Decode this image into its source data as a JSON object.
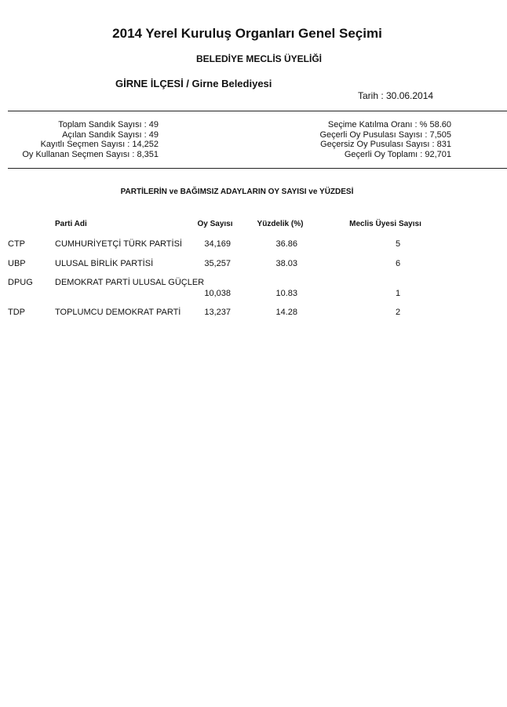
{
  "header": {
    "title": "2014 Yerel Kuruluş Organları Genel Seçimi",
    "subtitle": "BELEDİYE MECLİS ÜYELİĞİ",
    "district": "GİRNE İLÇESİ / Girne Belediyesi",
    "date": "Tarih : 30.06.2014"
  },
  "stats_left": [
    "Toplam Sandık Sayısı : 49",
    "Açılan Sandık Sayısı : 49",
    "Kayıtlı Seçmen Sayısı : 14,252",
    "Oy Kullanan Seçmen Sayısı : 8,351"
  ],
  "stats_right": [
    "Seçime Katılma Oranı : % 58.60",
    "Geçerli Oy Pusulası Sayısı : 7,505",
    "Geçersiz Oy Pusulası Sayısı : 831",
    "Geçerli Oy Toplamı : 92,701"
  ],
  "section_title": "PARTİLERİN ve BAĞIMSIZ ADAYLARIN OY SAYISI ve YÜZDESİ",
  "table": {
    "headers": [
      "Parti Adi",
      "Oy Sayısı",
      "Yüzdelik (%)",
      "Meclis Üyesi Sayısı"
    ],
    "rows": [
      {
        "abbr": "CTP",
        "name": "CUMHURİYETÇİ TÜRK PARTİSİ",
        "votes": "34,169",
        "percent": "36.86",
        "seats": "5"
      },
      {
        "abbr": "UBP",
        "name": "ULUSAL BİRLİK PARTİSİ",
        "votes": "35,257",
        "percent": "38.03",
        "seats": "6"
      },
      {
        "abbr": "DPUG",
        "name": "DEMOKRAT PARTİ ULUSAL GÜÇLER",
        "votes": "10,038",
        "percent": "10.83",
        "seats": "1"
      },
      {
        "abbr": "TDP",
        "name": "TOPLUMCU DEMOKRAT PARTİ",
        "votes": "13,237",
        "percent": "14.28",
        "seats": "2"
      }
    ]
  }
}
